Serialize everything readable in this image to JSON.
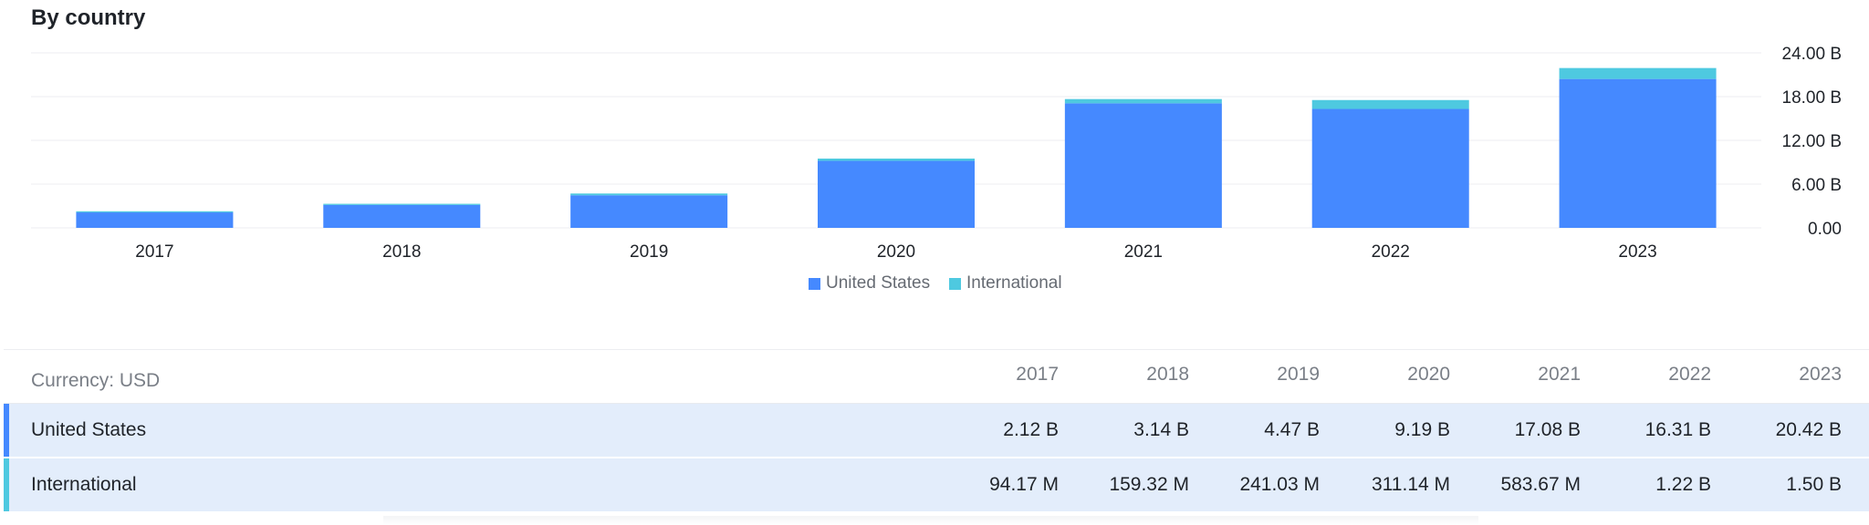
{
  "section_title": "By country",
  "colors": {
    "us": "#4589ff",
    "intl": "#4ec9e0",
    "grid": "#eceef1",
    "row_bg": "#e3edfb"
  },
  "chart_data": {
    "type": "bar",
    "stacked": true,
    "title": "By country",
    "categories": [
      "2017",
      "2018",
      "2019",
      "2020",
      "2021",
      "2022",
      "2023"
    ],
    "series": [
      {
        "name": "United States",
        "color": "#4589ff",
        "values": [
          2.12,
          3.14,
          4.47,
          9.19,
          17.08,
          16.31,
          20.42
        ]
      },
      {
        "name": "International",
        "color": "#4ec9e0",
        "values": [
          0.09417,
          0.15932,
          0.24103,
          0.31114,
          0.58367,
          1.22,
          1.5
        ]
      }
    ],
    "yticks": [
      "0.00",
      "6.00 B",
      "12.00 B",
      "18.00 B",
      "24.00 B"
    ],
    "ytick_values": [
      0,
      6,
      12,
      18,
      24
    ],
    "ylim": [
      0,
      24
    ],
    "y_axis_position": "right",
    "grid": true,
    "legend_position": "bottom"
  },
  "legend": [
    {
      "label": "United States"
    },
    {
      "label": "International"
    }
  ],
  "table": {
    "currency_label": "Currency: USD",
    "years": [
      "2017",
      "2018",
      "2019",
      "2020",
      "2021",
      "2022",
      "2023"
    ],
    "rows": [
      {
        "label": "United States",
        "values": [
          "2.12 B",
          "3.14 B",
          "4.47 B",
          "9.19 B",
          "17.08 B",
          "16.31 B",
          "20.42 B"
        ]
      },
      {
        "label": "International",
        "values": [
          "94.17 M",
          "159.32 M",
          "241.03 M",
          "311.14 M",
          "583.67 M",
          "1.22 B",
          "1.50 B"
        ]
      }
    ]
  }
}
